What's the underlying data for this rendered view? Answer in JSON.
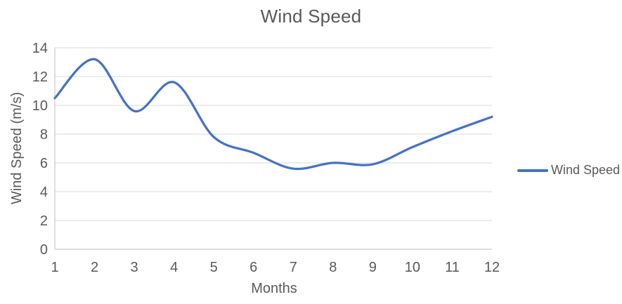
{
  "chart_data": {
    "type": "line",
    "title": "Wind Speed",
    "xlabel": "Months",
    "ylabel": "Wind Speed (m/s)",
    "x": [
      1,
      2,
      3,
      4,
      5,
      6,
      7,
      8,
      9,
      10,
      11,
      12
    ],
    "series": [
      {
        "name": "Wind Speed",
        "color": "#4472C4",
        "values": [
          10.5,
          13.2,
          9.6,
          11.6,
          7.8,
          6.7,
          5.6,
          6.0,
          5.9,
          7.1,
          8.2,
          9.2
        ]
      }
    ],
    "ylim": [
      0,
      14
    ],
    "ytick_step": 2,
    "yticks": [
      0,
      2,
      4,
      6,
      8,
      10,
      12,
      14
    ],
    "xticks": [
      1,
      2,
      3,
      4,
      5,
      6,
      7,
      8,
      9,
      10,
      11,
      12
    ],
    "grid": true,
    "smooth": true,
    "legend_position": "right",
    "legend_labels": [
      "Wind Speed"
    ]
  },
  "colors": {
    "line": "#4472C4",
    "grid": "#D9D9D9",
    "axis": "#BFBFBF",
    "text": "#595959",
    "background": "#FFFFFF"
  }
}
